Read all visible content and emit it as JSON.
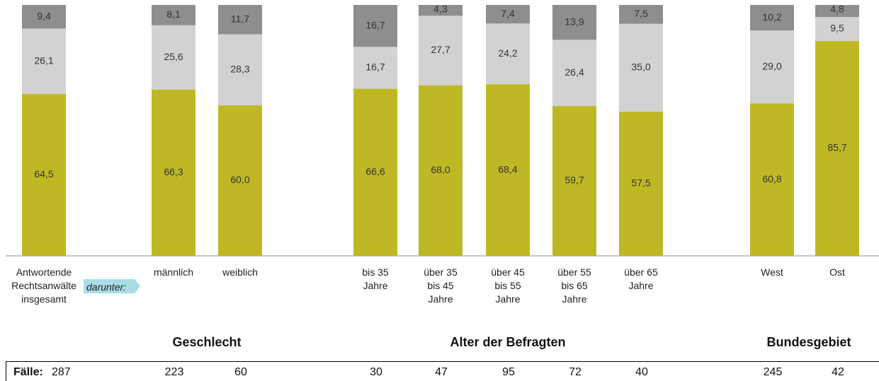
{
  "chart_data": {
    "type": "stacked_bar",
    "categories": [
      "Antwortende\nRechtsanwälte\ninsgesamt",
      "männlich",
      "weiblich",
      "bis 35\nJahre",
      "über 35\nbis 45\nJahre",
      "über 45\nbis 55\nJahre",
      "über 55\nbis 65\nJahre",
      "über 65\nJahre",
      "West",
      "Ost"
    ],
    "series": [
      {
        "color": "#bfb825",
        "values": [
          64.5,
          66.3,
          60.0,
          66.6,
          68.0,
          68.4,
          59.7,
          57.5,
          60.8,
          85.7
        ],
        "value_labels": [
          "64,5",
          "66,3",
          "60,0",
          "66,6",
          "68,0",
          "68,4",
          "59,7",
          "57,5",
          "60,8",
          "85,7"
        ]
      },
      {
        "color": "#d2d2d2",
        "values": [
          26.1,
          25.6,
          28.3,
          16.7,
          27.7,
          24.2,
          26.4,
          35.0,
          29.0,
          9.5
        ],
        "value_labels": [
          "26,1",
          "25,6",
          "28,3",
          "16,7",
          "27,7",
          "24,2",
          "26,4",
          "35,0",
          "29,0",
          "9,5"
        ]
      },
      {
        "color": "#8e8e8e",
        "values": [
          9.4,
          8.1,
          11.7,
          16.7,
          4.3,
          7.4,
          13.9,
          7.5,
          10.2,
          4.8
        ],
        "value_labels": [
          "9,4",
          "8,1",
          "11,7",
          "16,7",
          "4,3",
          "7,4",
          "13,9",
          "7,5",
          "10,2",
          "4,8"
        ]
      }
    ],
    "ylim": [
      0,
      100
    ],
    "subgroup_label": "darunter:",
    "groups": [
      "Geschlecht",
      "Alter der Befragten",
      "Bundesgebiet"
    ],
    "cases": {
      "label": "Fälle:",
      "values": [
        287,
        223,
        60,
        30,
        47,
        95,
        72,
        40,
        245,
        42
      ]
    }
  }
}
